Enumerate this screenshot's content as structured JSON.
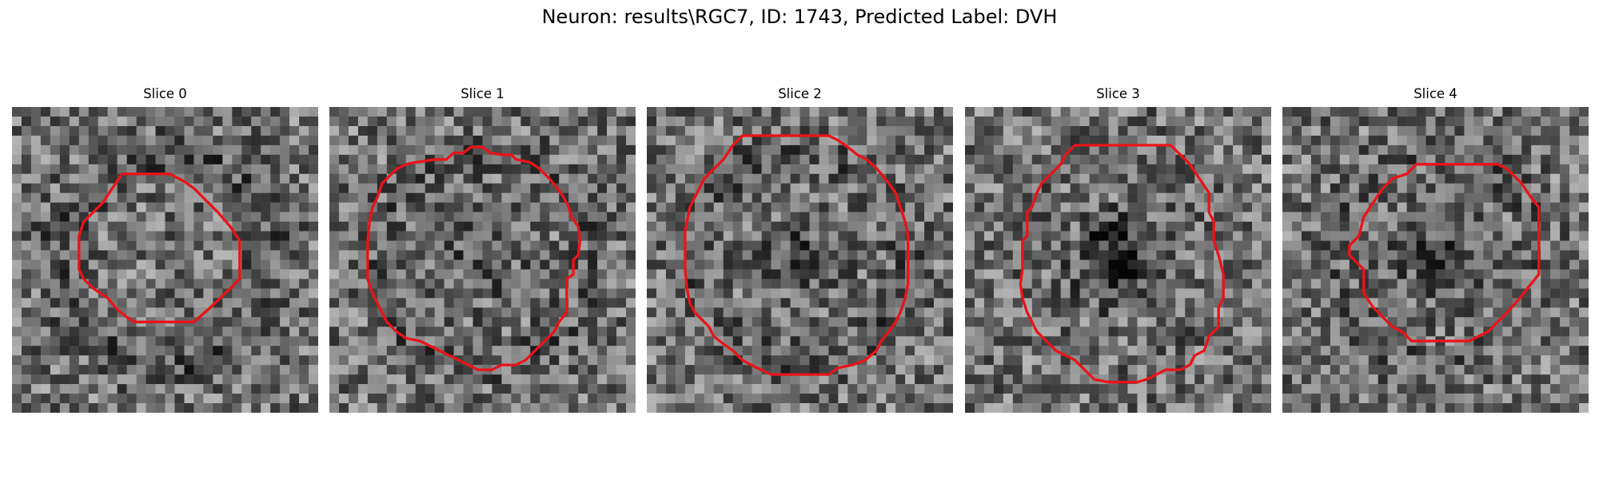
{
  "figure": {
    "suptitle": "Neuron: results\\RGC7, ID: 1743, Predicted Label: DVH"
  },
  "contour_color": "#e8141a",
  "panels": [
    {
      "title": "Slice 0",
      "seed": 11,
      "dark_center": 0.0,
      "dark_ring": 0.55
    },
    {
      "title": "Slice 1",
      "seed": 23,
      "dark_center": 0.35,
      "dark_ring": 0.35
    },
    {
      "title": "Slice 2",
      "seed": 37,
      "dark_center": 0.45,
      "dark_ring": 0.4
    },
    {
      "title": "Slice 3",
      "seed": 41,
      "dark_center": 1.0,
      "dark_ring": 0.1
    },
    {
      "title": "Slice 4",
      "seed": 53,
      "dark_center": 0.5,
      "dark_ring": 0.3
    }
  ]
}
